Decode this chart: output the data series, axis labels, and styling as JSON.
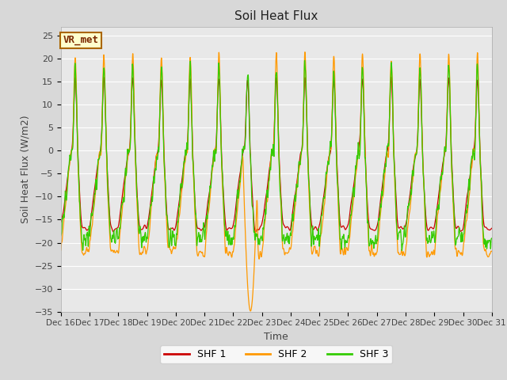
{
  "title": "Soil Heat Flux",
  "xlabel": "Time",
  "ylabel": "Soil Heat Flux (W/m2)",
  "ylim": [
    -35,
    27
  ],
  "yticks": [
    -35,
    -30,
    -25,
    -20,
    -15,
    -10,
    -5,
    0,
    5,
    10,
    15,
    20,
    25
  ],
  "colors": {
    "SHF 1": "#cc0000",
    "SHF 2": "#ff9900",
    "SHF 3": "#33cc00"
  },
  "annotation_text": "VR_met",
  "annotation_fg": "#7a2800",
  "annotation_bg": "#ffffcc",
  "annotation_edge": "#aa6600",
  "bg_color": "#d8d8d8",
  "plot_bg": "#e8e8e8",
  "grid_color": "white",
  "start_day": 16,
  "end_day": 31,
  "n_days": 15,
  "pts_per_day": 144
}
